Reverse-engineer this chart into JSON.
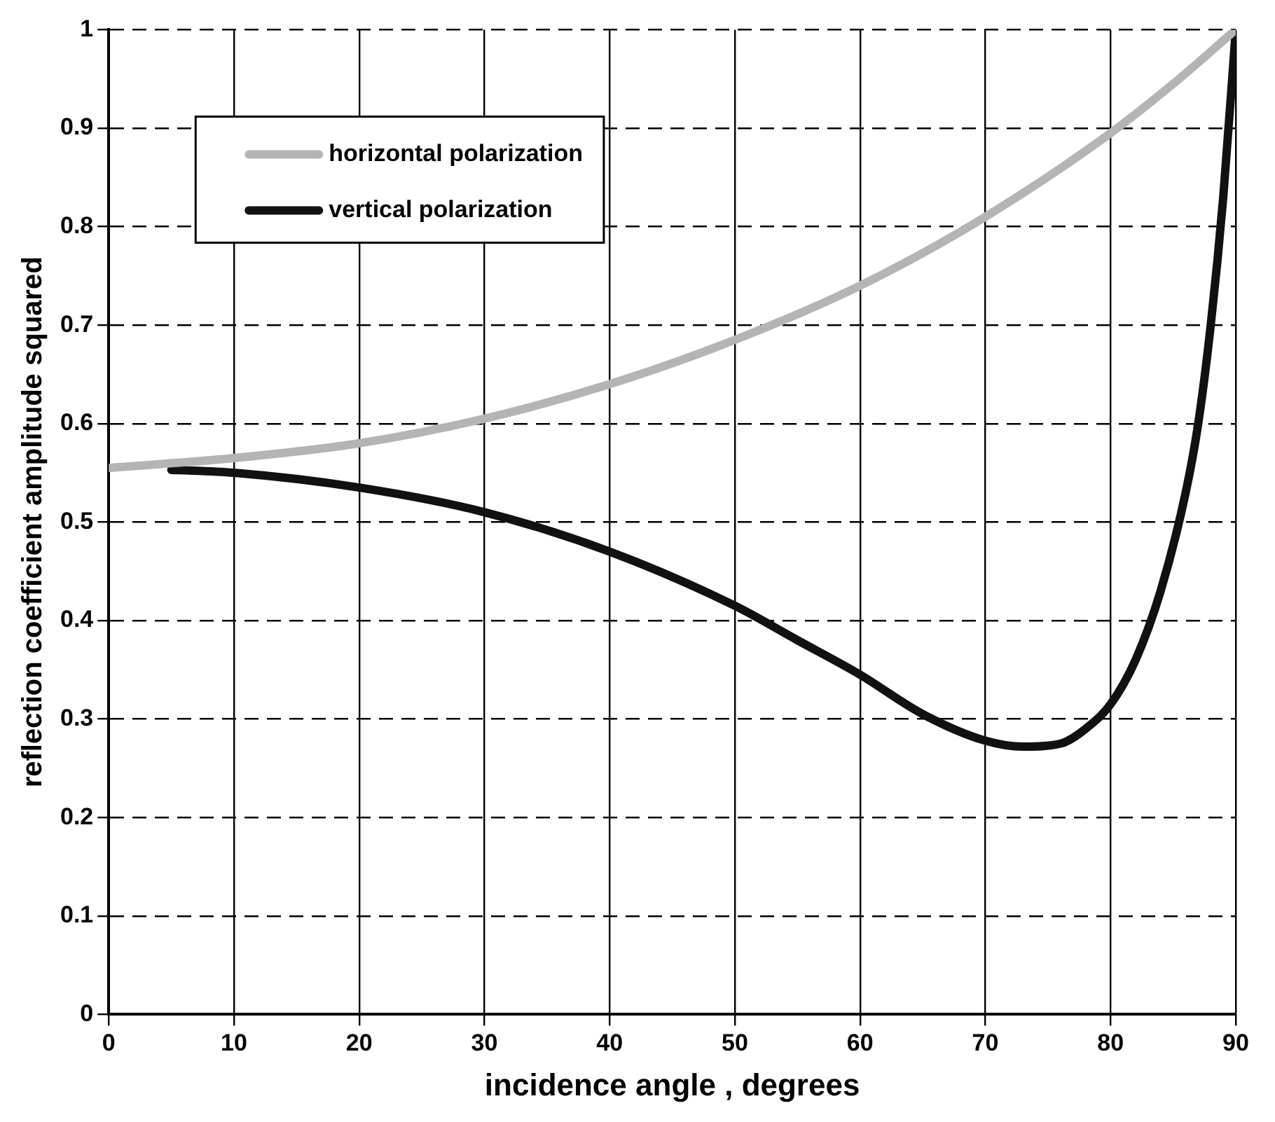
{
  "chart_data": {
    "type": "line",
    "xlabel": "incidence angle , degrees",
    "ylabel": "reflection coefficient amplitude squared",
    "xlim": [
      0,
      90
    ],
    "xticks": [
      0,
      10,
      20,
      30,
      40,
      50,
      60,
      70,
      80,
      90
    ],
    "ylim": [
      0,
      1
    ],
    "yticks": [
      0,
      0.1,
      0.2,
      0.3,
      0.4,
      0.5,
      0.6,
      0.7,
      0.8,
      0.9,
      1
    ],
    "grid": true,
    "legend": "top left",
    "marker": "none",
    "series": [
      {
        "name": "horizontal polarization",
        "color": "#b4b4b4",
        "x": [
          0,
          10,
          20,
          30,
          40,
          50,
          60,
          70,
          80,
          85,
          90
        ],
        "values": [
          0.555,
          0.565,
          0.58,
          0.605,
          0.64,
          0.685,
          0.74,
          0.81,
          0.895,
          0.945,
          1.0
        ]
      },
      {
        "name": "vertical polarization",
        "color": "#111111",
        "x": [
          5,
          10,
          20,
          30,
          40,
          50,
          55,
          60,
          65,
          70,
          73,
          76,
          78,
          80,
          82,
          84,
          86,
          87,
          88,
          89,
          90
        ],
        "values": [
          0.553,
          0.55,
          0.535,
          0.51,
          0.47,
          0.415,
          0.38,
          0.345,
          0.305,
          0.278,
          0.272,
          0.275,
          0.29,
          0.315,
          0.36,
          0.43,
          0.53,
          0.6,
          0.7,
          0.83,
          1.0
        ]
      }
    ]
  }
}
